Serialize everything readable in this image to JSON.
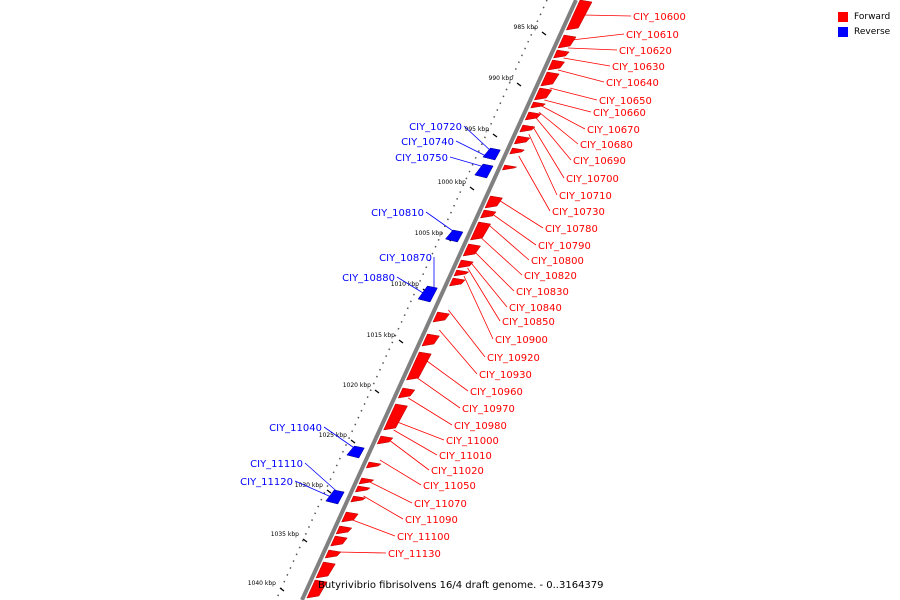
{
  "colors": {
    "forward": "#ff0000",
    "reverse": "#0000ff",
    "backbone": "#808080"
  },
  "legend": [
    {
      "label": "Forward",
      "color": "#ff0000"
    },
    {
      "label": "Reverse",
      "color": "#0000ff"
    }
  ],
  "genome_title": "Butyrivibrio fibrisolvens 16/4 draft genome. - 0..3164379",
  "ticks": [
    {
      "label": "985 kbp",
      "kbp": 985
    },
    {
      "label": "990 kbp",
      "kbp": 990
    },
    {
      "label": "995 kbp",
      "kbp": 995
    },
    {
      "label": "1000 kbp",
      "kbp": 1000
    },
    {
      "label": "1005 kbp",
      "kbp": 1005
    },
    {
      "label": "1010 kbp",
      "kbp": 1010
    },
    {
      "label": "1015 kbp",
      "kbp": 1015
    },
    {
      "label": "1020 kbp",
      "kbp": 1020
    },
    {
      "label": "1025 kbp",
      "kbp": 1025
    },
    {
      "label": "1030 kbp",
      "kbp": 1030
    },
    {
      "label": "1035 kbp",
      "kbp": 1035
    },
    {
      "label": "1040 kbp",
      "kbp": 1040
    }
  ],
  "features": [
    {
      "label": "CIY_10600",
      "strand": "forward"
    },
    {
      "label": "CIY_10610",
      "strand": "forward"
    },
    {
      "label": "CIY_10620",
      "strand": "forward"
    },
    {
      "label": "CIY_10630",
      "strand": "forward"
    },
    {
      "label": "CIY_10640",
      "strand": "forward"
    },
    {
      "label": "CIY_10650",
      "strand": "forward"
    },
    {
      "label": "CIY_10660",
      "strand": "forward"
    },
    {
      "label": "CIY_10670",
      "strand": "forward"
    },
    {
      "label": "CIY_10680",
      "strand": "forward"
    },
    {
      "label": "CIY_10690",
      "strand": "forward"
    },
    {
      "label": "CIY_10700",
      "strand": "forward"
    },
    {
      "label": "CIY_10710",
      "strand": "forward"
    },
    {
      "label": "CIY_10730",
      "strand": "forward"
    },
    {
      "label": "CIY_10780",
      "strand": "forward"
    },
    {
      "label": "CIY_10790",
      "strand": "forward"
    },
    {
      "label": "CIY_10800",
      "strand": "forward"
    },
    {
      "label": "CIY_10820",
      "strand": "forward"
    },
    {
      "label": "CIY_10830",
      "strand": "forward"
    },
    {
      "label": "CIY_10840",
      "strand": "forward"
    },
    {
      "label": "CIY_10850",
      "strand": "forward"
    },
    {
      "label": "CIY_10900",
      "strand": "forward"
    },
    {
      "label": "CIY_10920",
      "strand": "forward"
    },
    {
      "label": "CIY_10930",
      "strand": "forward"
    },
    {
      "label": "CIY_10960",
      "strand": "forward"
    },
    {
      "label": "CIY_10970",
      "strand": "forward"
    },
    {
      "label": "CIY_10980",
      "strand": "forward"
    },
    {
      "label": "CIY_11000",
      "strand": "forward"
    },
    {
      "label": "CIY_11010",
      "strand": "forward"
    },
    {
      "label": "CIY_11020",
      "strand": "forward"
    },
    {
      "label": "CIY_11050",
      "strand": "forward"
    },
    {
      "label": "CIY_11070",
      "strand": "forward"
    },
    {
      "label": "CIY_11090",
      "strand": "forward"
    },
    {
      "label": "CIY_11100",
      "strand": "forward"
    },
    {
      "label": "CIY_11130",
      "strand": "forward"
    },
    {
      "label": "CIY_10720",
      "strand": "reverse"
    },
    {
      "label": "CIY_10740",
      "strand": "reverse"
    },
    {
      "label": "CIY_10750",
      "strand": "reverse"
    },
    {
      "label": "CIY_10810",
      "strand": "reverse"
    },
    {
      "label": "CIY_10870",
      "strand": "reverse"
    },
    {
      "label": "CIY_10880",
      "strand": "reverse"
    },
    {
      "label": "CIY_11040",
      "strand": "reverse"
    },
    {
      "label": "CIY_11110",
      "strand": "reverse"
    },
    {
      "label": "CIY_11120",
      "strand": "reverse"
    }
  ]
}
